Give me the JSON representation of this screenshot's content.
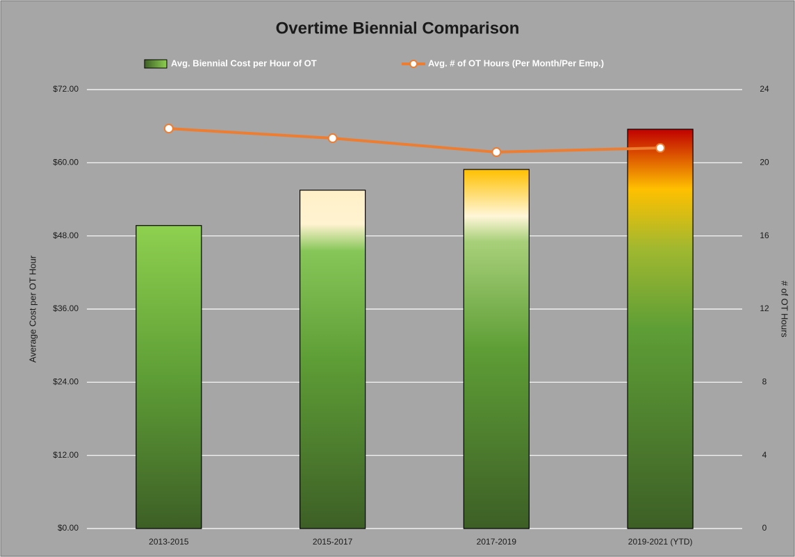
{
  "chart_data": {
    "type": "bar",
    "title": "Overtime Biennial Comparison",
    "categories": [
      "2013-2015",
      "2015-2017",
      "2017-2019",
      "2019-2021 (YTD)"
    ],
    "series": [
      {
        "name": "Avg. Biennial Cost per Hour of OT",
        "color": "#5a9a35",
        "values": [
          49.7,
          55.5,
          58.9,
          65.5
        ]
      },
      {
        "name": "Avg. # of OT Hours (Per Month/Per Emp.)",
        "color": "#ed7d31",
        "axis": "y2",
        "type": "line",
        "values": [
          21.87,
          21.34,
          20.58,
          20.81
        ]
      }
    ],
    "y_label": "Average Cost per OT Hour",
    "y2_label": "# of OT Hours",
    "ylim": [
      0,
      72
    ],
    "yticks": [
      {
        "value": 0,
        "label": "$0.00"
      },
      {
        "value": 12,
        "label": "$12.00"
      },
      {
        "value": 24,
        "label": "$24.00"
      },
      {
        "value": 36,
        "label": "$36.00"
      },
      {
        "value": 48,
        "label": "$48.00"
      },
      {
        "value": 60,
        "label": "$60.00"
      },
      {
        "value": 72,
        "label": "$72.00"
      }
    ],
    "y2lim": [
      0,
      24
    ],
    "y2ticks": [
      0,
      4,
      8,
      12,
      16,
      20,
      24
    ],
    "grid": true,
    "legend": "top"
  }
}
